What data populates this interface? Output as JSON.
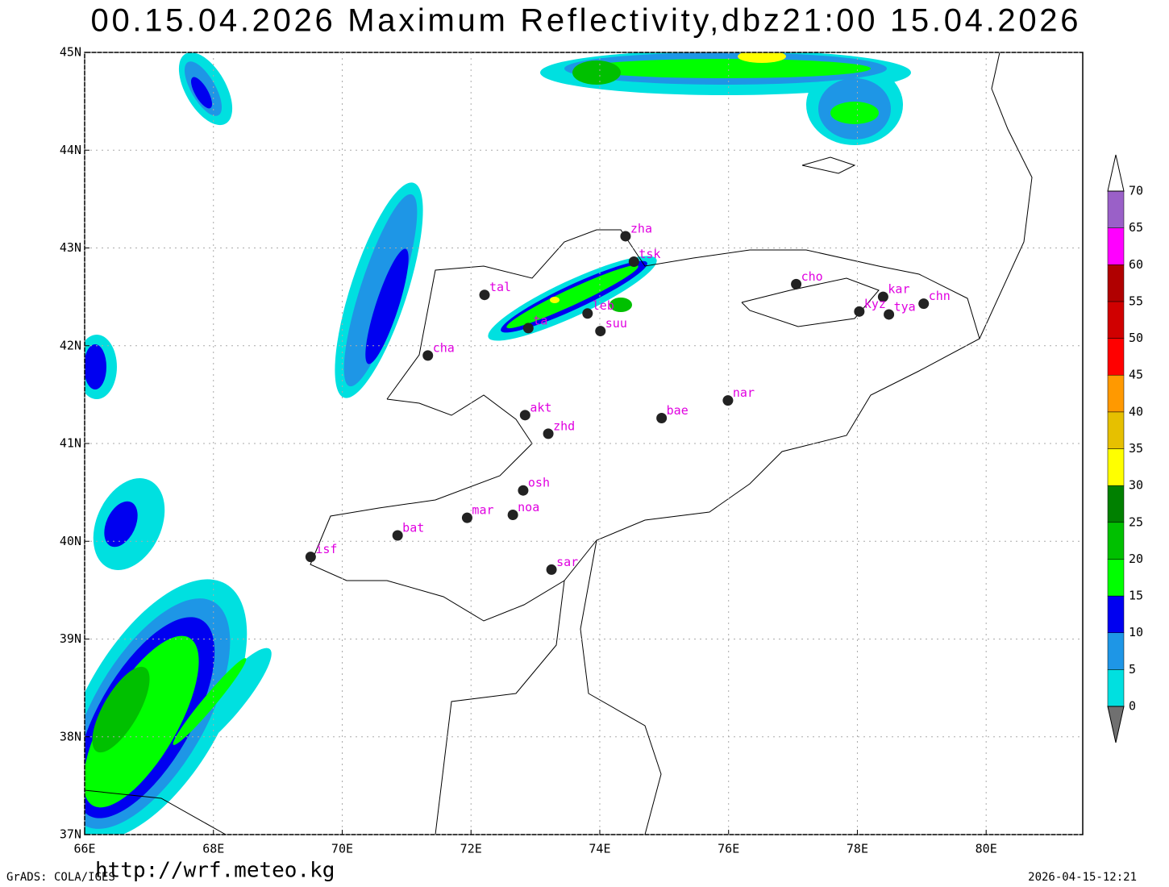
{
  "header": {
    "title": "00.15.04.2026  Maximum  Reflectivity,dbz21:00  15.04.2026"
  },
  "map": {
    "lonlim": [
      66,
      81.5
    ],
    "latlim": [
      37,
      45
    ],
    "lon_ticks": [
      {
        "value": 66,
        "label": "66E"
      },
      {
        "value": 68,
        "label": "68E"
      },
      {
        "value": 70,
        "label": "70E"
      },
      {
        "value": 72,
        "label": "72E"
      },
      {
        "value": 74,
        "label": "74E"
      },
      {
        "value": 76,
        "label": "76E"
      },
      {
        "value": 78,
        "label": "78E"
      },
      {
        "value": 80,
        "label": "80E"
      }
    ],
    "lat_ticks": [
      {
        "value": 37,
        "label": "37N"
      },
      {
        "value": 38,
        "label": "38N"
      },
      {
        "value": 39,
        "label": "39N"
      },
      {
        "value": 40,
        "label": "40N"
      },
      {
        "value": 41,
        "label": "41N"
      },
      {
        "value": 42,
        "label": "42N"
      },
      {
        "value": 43,
        "label": "43N"
      },
      {
        "value": 44,
        "label": "44N"
      },
      {
        "value": 45,
        "label": "45N"
      }
    ],
    "grid": true,
    "stations": [
      {
        "name": "zha",
        "lon": 74.4,
        "lat": 43.12
      },
      {
        "name": "tsk",
        "lon": 74.53,
        "lat": 42.86
      },
      {
        "name": "tal",
        "lon": 72.21,
        "lat": 42.52
      },
      {
        "name": "cho",
        "lon": 77.05,
        "lat": 42.63
      },
      {
        "name": "kar",
        "lon": 78.4,
        "lat": 42.5
      },
      {
        "name": "kyz",
        "lon": 78.03,
        "lat": 42.35
      },
      {
        "name": "tya",
        "lon": 78.49,
        "lat": 42.32
      },
      {
        "name": "chn",
        "lon": 79.03,
        "lat": 42.43
      },
      {
        "name": "leb",
        "lon": 73.81,
        "lat": 42.33
      },
      {
        "name": "ta",
        "lon": 72.89,
        "lat": 42.18
      },
      {
        "name": "suu",
        "lon": 74.01,
        "lat": 42.15
      },
      {
        "name": "cha",
        "lon": 71.33,
        "lat": 41.9
      },
      {
        "name": "akt",
        "lon": 72.84,
        "lat": 41.29
      },
      {
        "name": "zhd",
        "lon": 73.2,
        "lat": 41.1
      },
      {
        "name": "bae",
        "lon": 74.96,
        "lat": 41.26
      },
      {
        "name": "nar",
        "lon": 75.99,
        "lat": 41.44
      },
      {
        "name": "osh",
        "lon": 72.81,
        "lat": 40.52
      },
      {
        "name": "mar",
        "lon": 71.94,
        "lat": 40.24
      },
      {
        "name": "noa",
        "lon": 72.65,
        "lat": 40.27
      },
      {
        "name": "bat",
        "lon": 70.86,
        "lat": 40.06
      },
      {
        "name": "isf",
        "lon": 69.51,
        "lat": 39.84
      },
      {
        "name": "sar",
        "lon": 73.25,
        "lat": 39.71
      }
    ]
  },
  "colorbar": {
    "levels": [
      0,
      5,
      10,
      15,
      20,
      25,
      30,
      35,
      40,
      45,
      50,
      55,
      60,
      65,
      70
    ],
    "colors": [
      "#00e0e0",
      "#1e96e6",
      "#0000f0",
      "#00ff00",
      "#00c000",
      "#008000",
      "#ffff00",
      "#e6c000",
      "#ff9900",
      "#ff0000",
      "#d00000",
      "#b00000",
      "#ff00ff",
      "#9a60c8"
    ],
    "under_color": "#707070",
    "over_color": "#ffffff"
  },
  "footer": {
    "software": "GrADS: COLA/IGES",
    "url": "http://wrf.meteo.kg",
    "timestamp": "2026-04-15-12:21"
  }
}
